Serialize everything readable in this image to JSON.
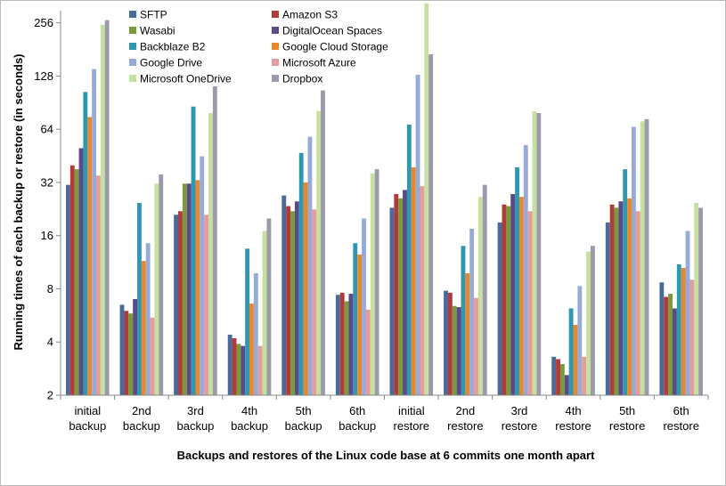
{
  "chart_data": {
    "type": "bar",
    "xlabel": "Backups and restores of the Linux code base at 6 commits one month apart",
    "ylabel": "Running times of each backup or restore (in seconds)",
    "y_scale": "log2",
    "ylim": [
      2,
      300
    ],
    "yticks": [
      2,
      4,
      8,
      16,
      32,
      64,
      128,
      256
    ],
    "grid": false,
    "legend_position": "top-left, two columns",
    "categories": [
      [
        "initial",
        "backup"
      ],
      [
        "2nd",
        "backup"
      ],
      [
        "3rd",
        "backup"
      ],
      [
        "4th",
        "backup"
      ],
      [
        "5th",
        "backup"
      ],
      [
        "6th",
        "backup"
      ],
      [
        "initial",
        "restore"
      ],
      [
        "2nd",
        "restore"
      ],
      [
        "3rd",
        "restore"
      ],
      [
        "4th",
        "restore"
      ],
      [
        "5th",
        "restore"
      ],
      [
        "6th",
        "restore"
      ]
    ],
    "series": [
      {
        "name": "SFTP",
        "color": "#4a6a9a",
        "values": [
          31,
          6.5,
          21,
          4.4,
          27,
          7.4,
          23,
          7.8,
          19,
          3.3,
          19,
          8.7
        ]
      },
      {
        "name": "Amazon S3",
        "color": "#b13a3a",
        "values": [
          40,
          6,
          22,
          4.2,
          23.5,
          7.6,
          27.5,
          7.6,
          24,
          3.2,
          24,
          7.2
        ]
      },
      {
        "name": "Wasabi",
        "color": "#7a9a3c",
        "values": [
          38,
          5.8,
          31.5,
          3.9,
          22,
          6.8,
          26,
          6.4,
          23.5,
          3,
          23,
          7.5
        ]
      },
      {
        "name": "DigitalOcean Spaces",
        "color": "#5a4a8a",
        "values": [
          50,
          7,
          31.5,
          3.8,
          25,
          7.5,
          29,
          6.3,
          27.5,
          2.6,
          25,
          6.2
        ]
      },
      {
        "name": "Backblaze B2",
        "color": "#2e98b0",
        "values": [
          104,
          24.5,
          86,
          13.5,
          47,
          14.5,
          68,
          14,
          39,
          6.2,
          38,
          11
        ]
      },
      {
        "name": "Google Cloud Storage",
        "color": "#e8882c",
        "values": [
          75,
          11.5,
          33,
          6.6,
          32,
          12.5,
          39,
          9.8,
          26.5,
          5,
          26,
          10.5
        ]
      },
      {
        "name": "Google Drive",
        "color": "#97aad8",
        "values": [
          140,
          14.5,
          45,
          9.8,
          58,
          20,
          130,
          17.5,
          52,
          8.3,
          66,
          17
        ]
      },
      {
        "name": "Microsoft Azure",
        "color": "#e49c9c",
        "values": [
          35,
          5.5,
          21,
          3.8,
          22.5,
          6.1,
          30.5,
          7.1,
          22,
          3.3,
          22,
          9
        ]
      },
      {
        "name": "Microsoft OneDrive",
        "color": "#c6e0a0",
        "values": [
          250,
          31.5,
          79,
          17,
          81,
          36,
          330,
          26.5,
          81,
          13,
          71,
          24.5
        ]
      },
      {
        "name": "Dropbox",
        "color": "#9a9aaa",
        "values": [
          265,
          35.5,
          112,
          20,
          106,
          38,
          170,
          31,
          79,
          14,
          73,
          23
        ]
      }
    ]
  }
}
